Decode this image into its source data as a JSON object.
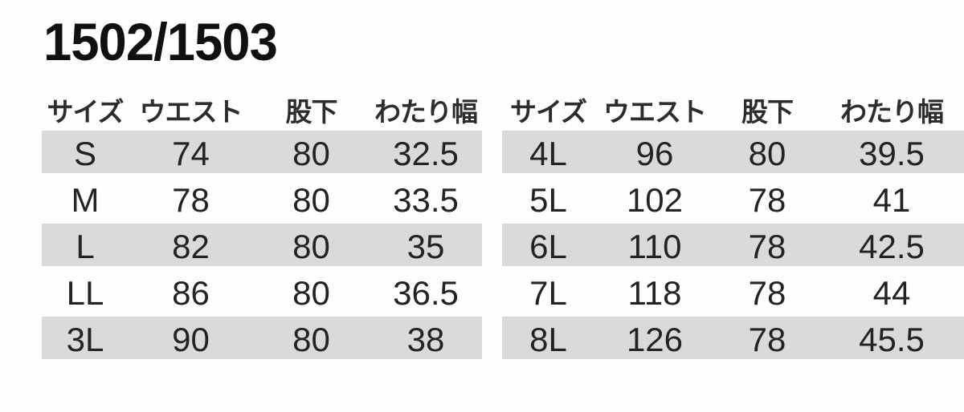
{
  "page": {
    "title": "1502/1503",
    "background_color": "#fefefe",
    "stripe_color": "#dadadc",
    "text_color": "#232323"
  },
  "tables": [
    {
      "name": "sizes-S-to-3L",
      "headers": {
        "size": "サイズ",
        "waist": "ウエスト",
        "inseam": "股下",
        "thigh_width": "わたり幅"
      },
      "rows": [
        {
          "size": "S",
          "waist": "74",
          "inseam": "80",
          "thigh_width": "32.5",
          "shaded": true
        },
        {
          "size": "M",
          "waist": "78",
          "inseam": "80",
          "thigh_width": "33.5",
          "shaded": false
        },
        {
          "size": "L",
          "waist": "82",
          "inseam": "80",
          "thigh_width": "35",
          "shaded": true
        },
        {
          "size": "LL",
          "waist": "86",
          "inseam": "80",
          "thigh_width": "36.5",
          "shaded": false
        },
        {
          "size": "3L",
          "waist": "90",
          "inseam": "80",
          "thigh_width": "38",
          "shaded": true
        }
      ]
    },
    {
      "name": "sizes-4L-to-8L",
      "headers": {
        "size": "サイズ",
        "waist": "ウエスト",
        "inseam": "股下",
        "thigh_width": "わたり幅"
      },
      "rows": [
        {
          "size": "4L",
          "waist": "96",
          "inseam": "80",
          "thigh_width": "39.5",
          "shaded": true
        },
        {
          "size": "5L",
          "waist": "102",
          "inseam": "78",
          "thigh_width": "41",
          "shaded": false
        },
        {
          "size": "6L",
          "waist": "110",
          "inseam": "78",
          "thigh_width": "42.5",
          "shaded": true
        },
        {
          "size": "7L",
          "waist": "118",
          "inseam": "78",
          "thigh_width": "44",
          "shaded": false
        },
        {
          "size": "8L",
          "waist": "126",
          "inseam": "78",
          "thigh_width": "45.5",
          "shaded": true
        }
      ]
    }
  ]
}
